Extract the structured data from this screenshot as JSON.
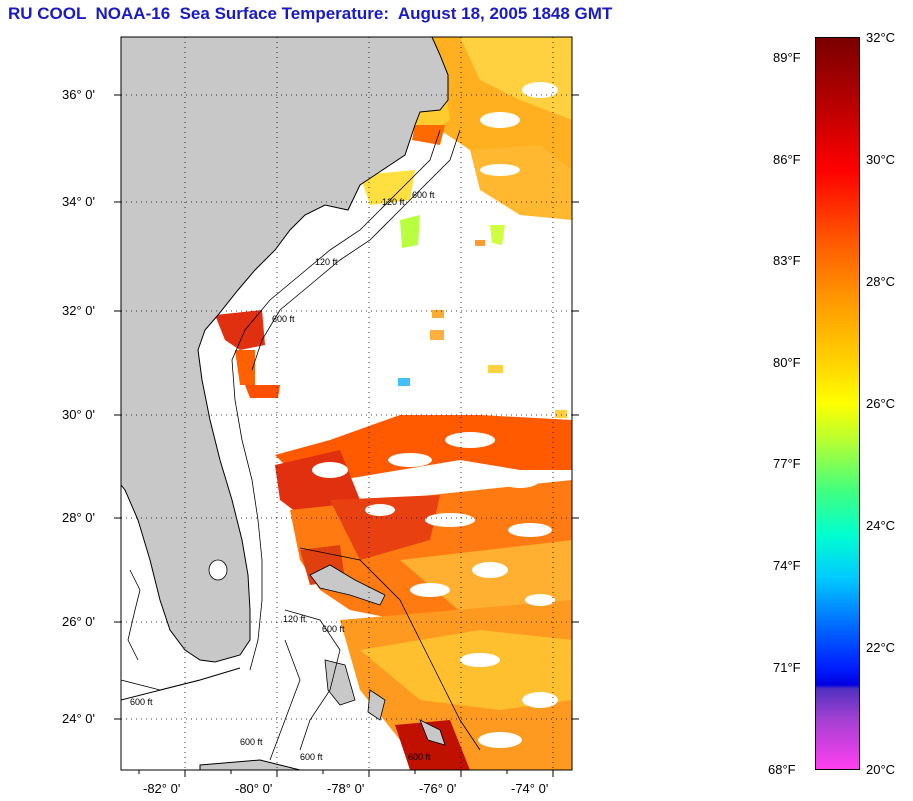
{
  "title": "RU COOL  NOAA-16  Sea Surface Temperature:  August 18, 2005 1848 GMT",
  "map": {
    "lat_labels": [
      "36° 0'",
      "34° 0'",
      "32° 0'",
      "30° 0'",
      "28° 0'",
      "26° 0'",
      "24° 0'"
    ],
    "lon_labels": [
      "-82° 0'",
      "-80° 0'",
      "-78° 0'",
      "-76° 0'",
      "-74° 0'"
    ],
    "contour_labels": [
      "120 ft",
      "600 ft"
    ],
    "land_color": "#c8c8c8",
    "cloud_color": "#ffffff"
  },
  "colorbar": {
    "fahrenheit": [
      "89°F",
      "86°F",
      "83°F",
      "80°F",
      "77°F",
      "74°F",
      "71°F",
      "68°F"
    ],
    "celsius": [
      "32°C",
      "30°C",
      "28°C",
      "26°C",
      "24°C",
      "22°C",
      "20°C"
    ],
    "range_c": [
      20,
      32
    ]
  }
}
